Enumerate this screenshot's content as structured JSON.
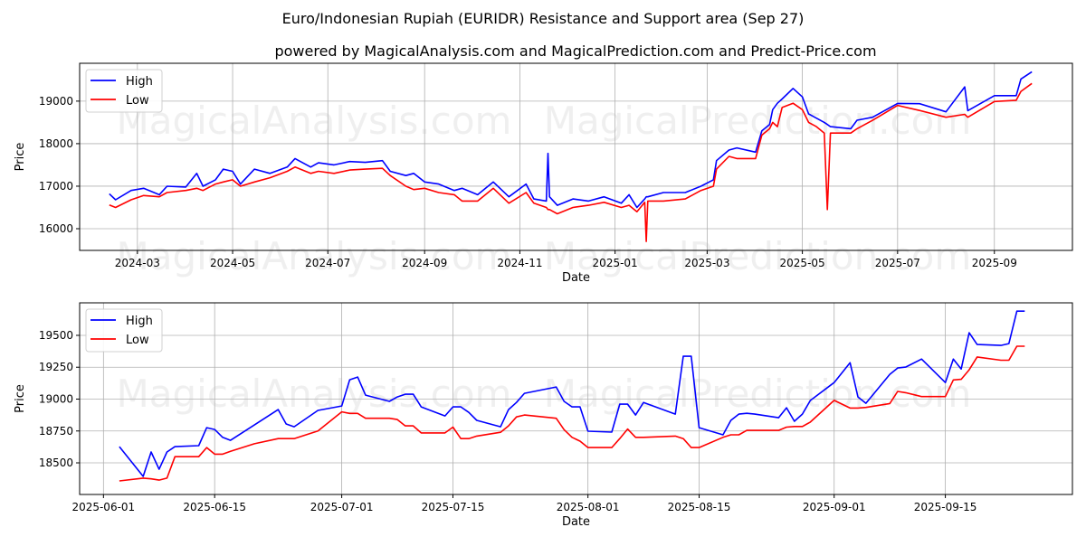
{
  "title": "Euro/Indonesian Rupiah (EURIDR) Resistance and Support area (Sep 27)",
  "subtitle": "powered by MagicalAnalysis.com and MagicalPrediction.com and Predict-Price.com",
  "watermarks": [
    "MagicalAnalysis.com",
    "MagicalPrediction.com"
  ],
  "colors": {
    "high": "#0000ff",
    "low": "#ff0000"
  },
  "chart_data": [
    {
      "type": "line",
      "xlabel": "Date",
      "ylabel": "Price",
      "legend": {
        "position": "top-left",
        "entries": [
          "High",
          "Low"
        ]
      },
      "grid": true,
      "xlim": [
        "2024-01-24",
        "2025-10-21"
      ],
      "ylim": [
        15490,
        19890
      ],
      "yticks": [
        16000,
        17000,
        18000,
        19000
      ],
      "xticks": [
        "2024-03",
        "2024-05",
        "2024-07",
        "2024-09",
        "2024-11",
        "2025-01",
        "2025-03",
        "2025-05",
        "2025-07",
        "2025-09"
      ],
      "x": [
        "2024-02-12",
        "2024-02-16",
        "2024-02-26",
        "2024-03-05",
        "2024-03-15",
        "2024-03-20",
        "2024-04-01",
        "2024-04-08",
        "2024-04-12",
        "2024-04-20",
        "2024-04-25",
        "2024-05-01",
        "2024-05-06",
        "2024-05-15",
        "2024-05-25",
        "2024-06-05",
        "2024-06-10",
        "2024-06-20",
        "2024-06-25",
        "2024-07-05",
        "2024-07-15",
        "2024-07-25",
        "2024-08-05",
        "2024-08-10",
        "2024-08-20",
        "2024-08-25",
        "2024-09-01",
        "2024-09-10",
        "2024-09-20",
        "2024-09-25",
        "2024-10-05",
        "2024-10-15",
        "2024-10-25",
        "2024-11-05",
        "2024-11-10",
        "2024-11-18",
        "2024-11-19",
        "2024-11-20",
        "2024-11-25",
        "2024-12-05",
        "2024-12-15",
        "2024-12-25",
        "2025-01-05",
        "2025-01-10",
        "2025-01-15",
        "2025-01-20",
        "2025-01-21",
        "2025-01-22",
        "2025-02-01",
        "2025-02-15",
        "2025-02-25",
        "2025-03-05",
        "2025-03-07",
        "2025-03-15",
        "2025-03-20",
        "2025-04-01",
        "2025-04-05",
        "2025-04-10",
        "2025-04-12",
        "2025-04-15",
        "2025-04-18",
        "2025-04-25",
        "2025-05-01",
        "2025-05-05",
        "2025-05-10",
        "2025-05-15",
        "2025-05-17",
        "2025-05-19",
        "2025-06-01",
        "2025-06-05",
        "2025-06-15",
        "2025-07-01",
        "2025-07-15",
        "2025-08-01",
        "2025-08-13",
        "2025-08-15",
        "2025-09-01",
        "2025-09-15",
        "2025-09-18",
        "2025-09-25"
      ],
      "series": [
        {
          "name": "High",
          "values": [
            16820,
            16680,
            16900,
            16950,
            16800,
            17000,
            16980,
            17300,
            17000,
            17150,
            17400,
            17350,
            17050,
            17400,
            17300,
            17450,
            17650,
            17450,
            17550,
            17500,
            17580,
            17560,
            17600,
            17350,
            17250,
            17300,
            17100,
            17050,
            16900,
            16950,
            16800,
            17100,
            16750,
            17050,
            16700,
            16650,
            17770,
            16750,
            16550,
            16700,
            16650,
            16750,
            16600,
            16800,
            16500,
            16700,
            16750,
            16750,
            16850,
            16850,
            17000,
            17150,
            17600,
            17850,
            17900,
            17800,
            18300,
            18450,
            18800,
            18950,
            19050,
            19300,
            19100,
            18700,
            18600,
            18500,
            18450,
            18400,
            18350,
            18550,
            18620,
            18946,
            18939,
            18748,
            19336,
            18776,
            19130,
            19130,
            19520,
            19690
          ]
        },
        {
          "name": "Low",
          "values": [
            16560,
            16500,
            16680,
            16780,
            16750,
            16850,
            16900,
            16950,
            16900,
            17050,
            17100,
            17150,
            17000,
            17100,
            17200,
            17350,
            17450,
            17300,
            17350,
            17300,
            17380,
            17400,
            17420,
            17250,
            17000,
            16920,
            16950,
            16850,
            16800,
            16650,
            16650,
            16950,
            16600,
            16850,
            16600,
            16500,
            16450,
            16450,
            16350,
            16500,
            16550,
            16620,
            16500,
            16550,
            16400,
            16620,
            15700,
            16650,
            16650,
            16700,
            16900,
            17000,
            17400,
            17700,
            17650,
            17650,
            18200,
            18350,
            18500,
            18400,
            18850,
            18950,
            18800,
            18500,
            18400,
            18250,
            16450,
            18250,
            18250,
            18350,
            18548,
            18900,
            18780,
            18620,
            18690,
            18620,
            18990,
            19020,
            19230,
            19415
          ]
        }
      ]
    },
    {
      "type": "line",
      "xlabel": "Date",
      "ylabel": "Price",
      "legend": {
        "position": "top-left",
        "entries": [
          "High",
          "Low"
        ]
      },
      "grid": true,
      "xlim": [
        "2025-05-29",
        "2025-10-01"
      ],
      "ylim": [
        18252,
        19755
      ],
      "yticks": [
        18500,
        18750,
        19000,
        19250,
        19500
      ],
      "xticks": [
        "2025-06-01",
        "2025-06-15",
        "2025-07-01",
        "2025-07-15",
        "2025-08-01",
        "2025-08-15",
        "2025-09-01",
        "2025-09-15"
      ],
      "x": [
        "2025-06-03",
        "2025-06-06",
        "2025-06-07",
        "2025-06-08",
        "2025-06-09",
        "2025-06-10",
        "2025-06-13",
        "2025-06-14",
        "2025-06-15",
        "2025-06-16",
        "2025-06-17",
        "2025-06-20",
        "2025-06-23",
        "2025-06-24",
        "2025-06-25",
        "2025-06-28",
        "2025-07-01",
        "2025-07-02",
        "2025-07-03",
        "2025-07-04",
        "2025-07-07",
        "2025-07-08",
        "2025-07-09",
        "2025-07-10",
        "2025-07-11",
        "2025-07-14",
        "2025-07-15",
        "2025-07-16",
        "2025-07-17",
        "2025-07-18",
        "2025-07-21",
        "2025-07-22",
        "2025-07-23",
        "2025-07-24",
        "2025-07-28",
        "2025-07-29",
        "2025-07-30",
        "2025-07-31",
        "2025-08-01",
        "2025-08-04",
        "2025-08-05",
        "2025-08-06",
        "2025-08-07",
        "2025-08-08",
        "2025-08-12",
        "2025-08-13",
        "2025-08-14",
        "2025-08-15",
        "2025-08-18",
        "2025-08-19",
        "2025-08-20",
        "2025-08-21",
        "2025-08-22",
        "2025-08-25",
        "2025-08-26",
        "2025-08-27",
        "2025-08-28",
        "2025-08-29",
        "2025-09-01",
        "2025-09-03",
        "2025-09-04",
        "2025-09-05",
        "2025-09-08",
        "2025-09-09",
        "2025-09-10",
        "2025-09-12",
        "2025-09-15",
        "2025-09-16",
        "2025-09-17",
        "2025-09-18",
        "2025-09-19",
        "2025-09-22",
        "2025-09-23",
        "2025-09-24",
        "2025-09-25"
      ],
      "series": [
        {
          "name": "High",
          "values": [
            18627,
            18394,
            18585,
            18450,
            18585,
            18627,
            18635,
            18776,
            18762,
            18700,
            18677,
            18797,
            18918,
            18805,
            18783,
            18911,
            18946,
            19152,
            19173,
            19031,
            18982,
            19017,
            19038,
            19038,
            18939,
            18868,
            18939,
            18939,
            18896,
            18833,
            18783,
            18918,
            18974,
            19045,
            19095,
            18982,
            18939,
            18939,
            18748,
            18741,
            18960,
            18960,
            18875,
            18974,
            18882,
            19336,
            19336,
            18776,
            18720,
            18833,
            18882,
            18889,
            18882,
            18854,
            18932,
            18826,
            18882,
            18989,
            19130,
            19286,
            19017,
            18967,
            19194,
            19244,
            19251,
            19314,
            19130,
            19314,
            19236,
            19520,
            19428,
            19421,
            19435,
            19690,
            19690
          ]
        },
        {
          "name": "Low",
          "values": [
            18358,
            18380,
            18375,
            18365,
            18380,
            18548,
            18548,
            18620,
            18568,
            18568,
            18590,
            18650,
            18690,
            18690,
            18690,
            18750,
            18900,
            18888,
            18888,
            18850,
            18850,
            18840,
            18790,
            18790,
            18735,
            18735,
            18780,
            18690,
            18690,
            18710,
            18740,
            18790,
            18860,
            18875,
            18850,
            18760,
            18700,
            18670,
            18620,
            18620,
            18690,
            18765,
            18700,
            18700,
            18710,
            18690,
            18620,
            18620,
            18700,
            18720,
            18720,
            18755,
            18755,
            18755,
            18780,
            18785,
            18785,
            18820,
            18990,
            18930,
            18930,
            18935,
            18965,
            19060,
            19050,
            19020,
            19020,
            19150,
            19155,
            19230,
            19330,
            19305,
            19305,
            19415,
            19415
          ]
        }
      ]
    }
  ]
}
